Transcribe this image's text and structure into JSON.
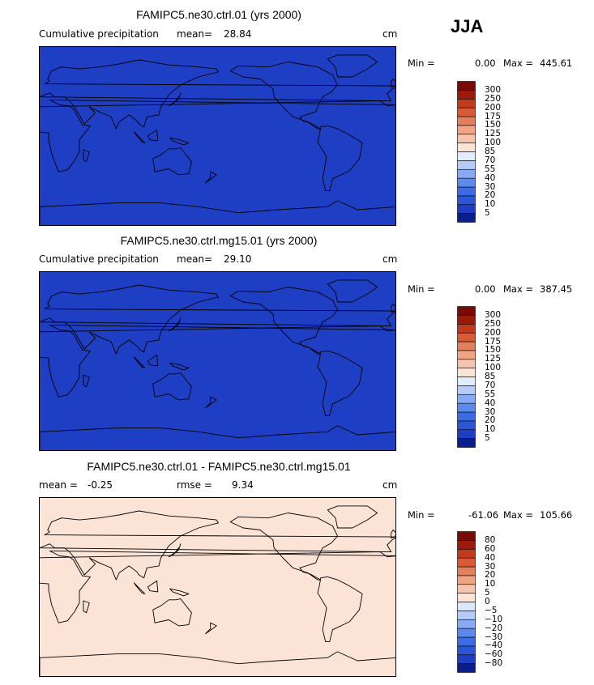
{
  "season": "JJA",
  "colors": {
    "precip_scale": [
      "#0b1f8c",
      "#1e3ec4",
      "#2b55d8",
      "#3b6ce6",
      "#5b89ee",
      "#86aaf3",
      "#b5cbf8",
      "#e3ecfc",
      "#fbe3d6",
      "#f6c4ad",
      "#f0a484",
      "#e57e5a",
      "#d85a36",
      "#c23a1c",
      "#9b1a0a",
      "#7a0a06"
    ],
    "diff_scale": [
      "#0b1f8c",
      "#1e3ec4",
      "#2b55d8",
      "#3b6ce6",
      "#5b89ee",
      "#86aaf3",
      "#b5cbf8",
      "#dbe7fb",
      "#fbe3d6",
      "#f6c4ad",
      "#f0a484",
      "#e57e5a",
      "#d85a36",
      "#c23a1c",
      "#9b1a0a",
      "#7a0a06"
    ],
    "coast": "#000000"
  },
  "panels": [
    {
      "title": "FAMIPC5.ne30.ctrl.01 (yrs 2000)",
      "left_label": "Cumulative precipitation",
      "mean_label": "mean=",
      "mean_value": "28.84",
      "units": "cm",
      "min_label": "Min =",
      "min_value": "0.00",
      "max_label": "Max =",
      "max_value": "445.61",
      "levels": [
        "5",
        "10",
        "20",
        "30",
        "40",
        "55",
        "70",
        "85",
        "100",
        "125",
        "150",
        "175",
        "200",
        "250",
        "300"
      ]
    },
    {
      "title": "FAMIPC5.ne30.ctrl.mg15.01 (yrs 2000)",
      "left_label": "Cumulative precipitation",
      "mean_label": "mean=",
      "mean_value": "29.10",
      "units": "cm",
      "min_label": "Min =",
      "min_value": "0.00",
      "max_label": "Max =",
      "max_value": "387.45",
      "levels": [
        "5",
        "10",
        "20",
        "30",
        "40",
        "55",
        "70",
        "85",
        "100",
        "125",
        "150",
        "175",
        "200",
        "250",
        "300"
      ]
    },
    {
      "title": "FAMIPC5.ne30.ctrl.01 - FAMIPC5.ne30.ctrl.mg15.01",
      "left_label": "mean =",
      "left_value": "-0.25",
      "mean_label": "rmse =",
      "mean_value": "9.34",
      "units": "cm",
      "min_label": "Min =",
      "min_value": "-61.06",
      "max_label": "Max =",
      "max_value": "105.66",
      "levels": [
        "-80",
        "-60",
        "-40",
        "-30",
        "-20",
        "-10",
        "-5",
        "0",
        "5",
        "10",
        "20",
        "30",
        "40",
        "60",
        "80"
      ]
    }
  ],
  "chart_data": [
    {
      "type": "heatmap",
      "title": "FAMIPC5.ne30.ctrl.01 (yrs 2000)",
      "variable": "Cumulative precipitation",
      "season": "JJA",
      "units": "cm",
      "mean": 28.84,
      "min": 0.0,
      "max": 445.61,
      "contour_levels": [
        5,
        10,
        20,
        30,
        40,
        55,
        70,
        85,
        100,
        125,
        150,
        175,
        200,
        250,
        300
      ]
    },
    {
      "type": "heatmap",
      "title": "FAMIPC5.ne30.ctrl.mg15.01 (yrs 2000)",
      "variable": "Cumulative precipitation",
      "season": "JJA",
      "units": "cm",
      "mean": 29.1,
      "min": 0.0,
      "max": 387.45,
      "contour_levels": [
        5,
        10,
        20,
        30,
        40,
        55,
        70,
        85,
        100,
        125,
        150,
        175,
        200,
        250,
        300
      ]
    },
    {
      "type": "heatmap",
      "title": "FAMIPC5.ne30.ctrl.01 - FAMIPC5.ne30.ctrl.mg15.01",
      "season": "JJA",
      "units": "cm",
      "mean": -0.25,
      "rmse": 9.34,
      "min": -61.06,
      "max": 105.66,
      "contour_levels": [
        -80,
        -60,
        -40,
        -30,
        -20,
        -10,
        -5,
        0,
        5,
        10,
        20,
        30,
        40,
        60,
        80
      ]
    }
  ]
}
